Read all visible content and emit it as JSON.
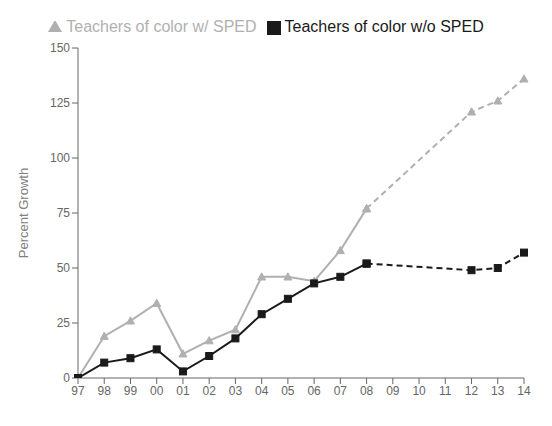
{
  "chart_data": {
    "type": "line",
    "categories": [
      "97",
      "98",
      "99",
      "00",
      "01",
      "02",
      "03",
      "04",
      "05",
      "06",
      "07",
      "08",
      "09",
      "10",
      "11",
      "12",
      "13",
      "14"
    ],
    "series": [
      {
        "name": "Teachers of color w/ SPED",
        "color": "#b0b0b0",
        "marker": "triangle",
        "values": [
          0,
          19,
          26,
          34,
          11,
          17,
          22,
          46,
          46,
          44,
          58,
          77,
          null,
          null,
          null,
          121,
          126,
          136
        ]
      },
      {
        "name": "Teachers of color w/o SPED",
        "color": "#1a1a1a",
        "marker": "square",
        "values": [
          0,
          7,
          9,
          13,
          3,
          10,
          18,
          29,
          36,
          43,
          46,
          52,
          null,
          null,
          null,
          49,
          50,
          57
        ]
      }
    ],
    "ylabel": "Percent Growth",
    "ylim": [
      0,
      150
    ],
    "yticks": [
      0,
      25,
      50,
      75,
      100,
      125,
      150
    ],
    "grid": false,
    "legend": "top"
  }
}
